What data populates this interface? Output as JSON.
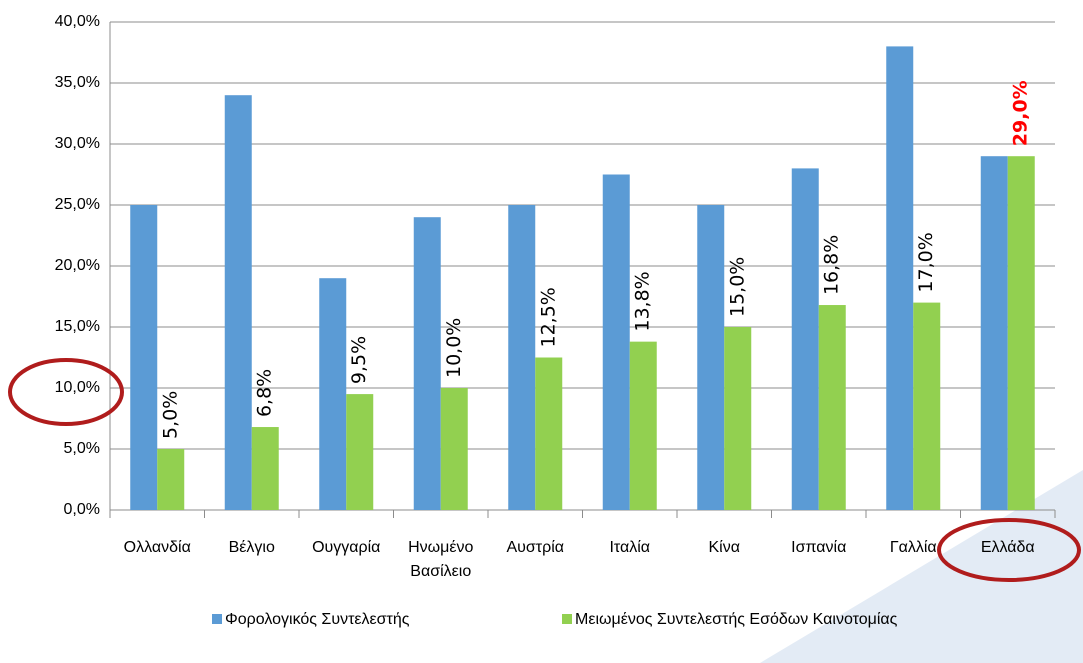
{
  "chart_data": {
    "type": "bar",
    "categories": [
      "Ολλανδία",
      "Βέλγιο",
      "Ουγγαρία",
      "Ηνωμένο Βασίλειο",
      "Αυστρία",
      "Ιταλία",
      "Κίνα",
      "Ισπανία",
      "Γαλλία",
      "Ελλάδα"
    ],
    "series": [
      {
        "name": "Φορολογικός Συντελεστής",
        "color": "#5b9bd5",
        "values": [
          25,
          34,
          19,
          24,
          25,
          27.5,
          25,
          28,
          38,
          29
        ]
      },
      {
        "name": "Μειωμένος Συντελεστής Εσόδων Καινοτομίας",
        "color": "#92d050",
        "values": [
          5,
          6.8,
          9.5,
          10,
          12.5,
          13.8,
          15,
          16.8,
          17,
          29
        ],
        "value_labels": [
          "5,0%",
          "6,8%",
          "9,5%",
          "10,0%",
          "12,5%",
          "13,8%",
          "15,0%",
          "16,8%",
          "17,0%",
          "29,0%"
        ],
        "value_label_colors": [
          "#000000",
          "#000000",
          "#000000",
          "#000000",
          "#000000",
          "#000000",
          "#000000",
          "#000000",
          "#000000",
          "#ff0000"
        ]
      }
    ],
    "ylim": [
      0,
      40
    ],
    "yticks": [
      {
        "value": 0,
        "label": "0,0%"
      },
      {
        "value": 5,
        "label": "5,0%"
      },
      {
        "value": 10,
        "label": "10,0%"
      },
      {
        "value": 15,
        "label": "15,0%"
      },
      {
        "value": 20,
        "label": "20,0%"
      },
      {
        "value": 25,
        "label": "25,0%"
      },
      {
        "value": 30,
        "label": "30,0%"
      },
      {
        "value": 35,
        "label": "35,0%"
      },
      {
        "value": 40,
        "label": "40,0%"
      }
    ],
    "grid": true,
    "legend": "bottom"
  }
}
